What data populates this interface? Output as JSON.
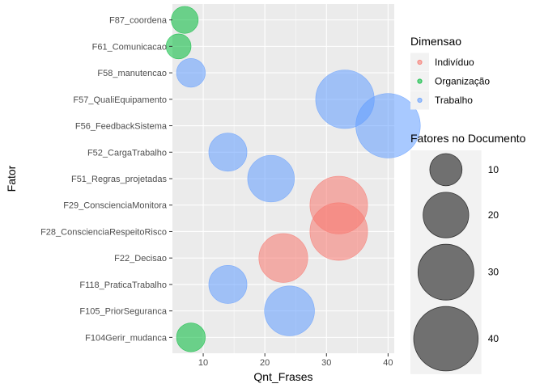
{
  "chart_data": {
    "type": "scatter",
    "subtype": "bubble",
    "xlabel": "Qnt_Frases",
    "ylabel": "Fator",
    "xlim": [
      5,
      41
    ],
    "x_ticks": [
      10,
      20,
      30,
      40
    ],
    "grid": true,
    "categories": [
      "F104Gerir_mudanca",
      "F105_PriorSeguranca",
      "F118_PraticaTrabalho",
      "F22_Decisao",
      "F28_ConscienciaRespeitoRisco",
      "F29_ConscienciaMonitora",
      "F51_Regras_projetadas",
      "F52_CargaTrabalho",
      "F56_FeedbackSistema",
      "F57_QualiEquipamento",
      "F58_manutencao",
      "F61_Comunicacao",
      "F87_coordena"
    ],
    "points": [
      {
        "fator": "F104Gerir_mudanca",
        "x": 8,
        "size": 8,
        "dimensao": "Organização"
      },
      {
        "fator": "F105_PriorSeguranca",
        "x": 24,
        "size": 24,
        "dimensao": "Trabalho"
      },
      {
        "fator": "F118_PraticaTrabalho",
        "x": 14,
        "size": 14,
        "dimensao": "Trabalho"
      },
      {
        "fator": "F22_Decisao",
        "x": 23,
        "size": 23,
        "dimensao": "Indivíduo"
      },
      {
        "fator": "F28_ConscienciaRespeitoRisco",
        "x": 32,
        "size": 32,
        "dimensao": "Indivíduo"
      },
      {
        "fator": "F29_ConscienciaMonitora",
        "x": 32,
        "size": 32,
        "dimensao": "Indivíduo"
      },
      {
        "fator": "F51_Regras_projetadas",
        "x": 21,
        "size": 21,
        "dimensao": "Trabalho"
      },
      {
        "fator": "F52_CargaTrabalho",
        "x": 14,
        "size": 14,
        "dimensao": "Trabalho"
      },
      {
        "fator": "F56_FeedbackSistema",
        "x": 40,
        "size": 40,
        "dimensao": "Trabalho"
      },
      {
        "fator": "F57_QualiEquipamento",
        "x": 33,
        "size": 33,
        "dimensao": "Trabalho"
      },
      {
        "fator": "F58_manutencao",
        "x": 8,
        "size": 8,
        "dimensao": "Trabalho"
      },
      {
        "fator": "F61_Comunicacao",
        "x": 6,
        "size": 6,
        "dimensao": "Organização"
      },
      {
        "fator": "F87_coordena",
        "x": 7,
        "size": 7,
        "dimensao": "Organização"
      }
    ],
    "legend_color": {
      "title": "Dimensao",
      "placement": "right",
      "entries": [
        {
          "label": "Indivíduo",
          "color": "#F8766D"
        },
        {
          "label": "Organização",
          "color": "#00BA38"
        },
        {
          "label": "Trabalho",
          "color": "#619CFF"
        }
      ]
    },
    "legend_size": {
      "title": "Fatores no Documento",
      "placement": "right",
      "entries": [
        {
          "label": "10",
          "value": 10
        },
        {
          "label": "20",
          "value": 20
        },
        {
          "label": "30",
          "value": 30
        },
        {
          "label": "40",
          "value": 40
        }
      ]
    },
    "colors": {
      "panel_bg": "#EBEBEB",
      "grid_major": "#FFFFFF",
      "legend_key_bg": "#F2F2F2",
      "size_key_fill": "#595959"
    }
  }
}
